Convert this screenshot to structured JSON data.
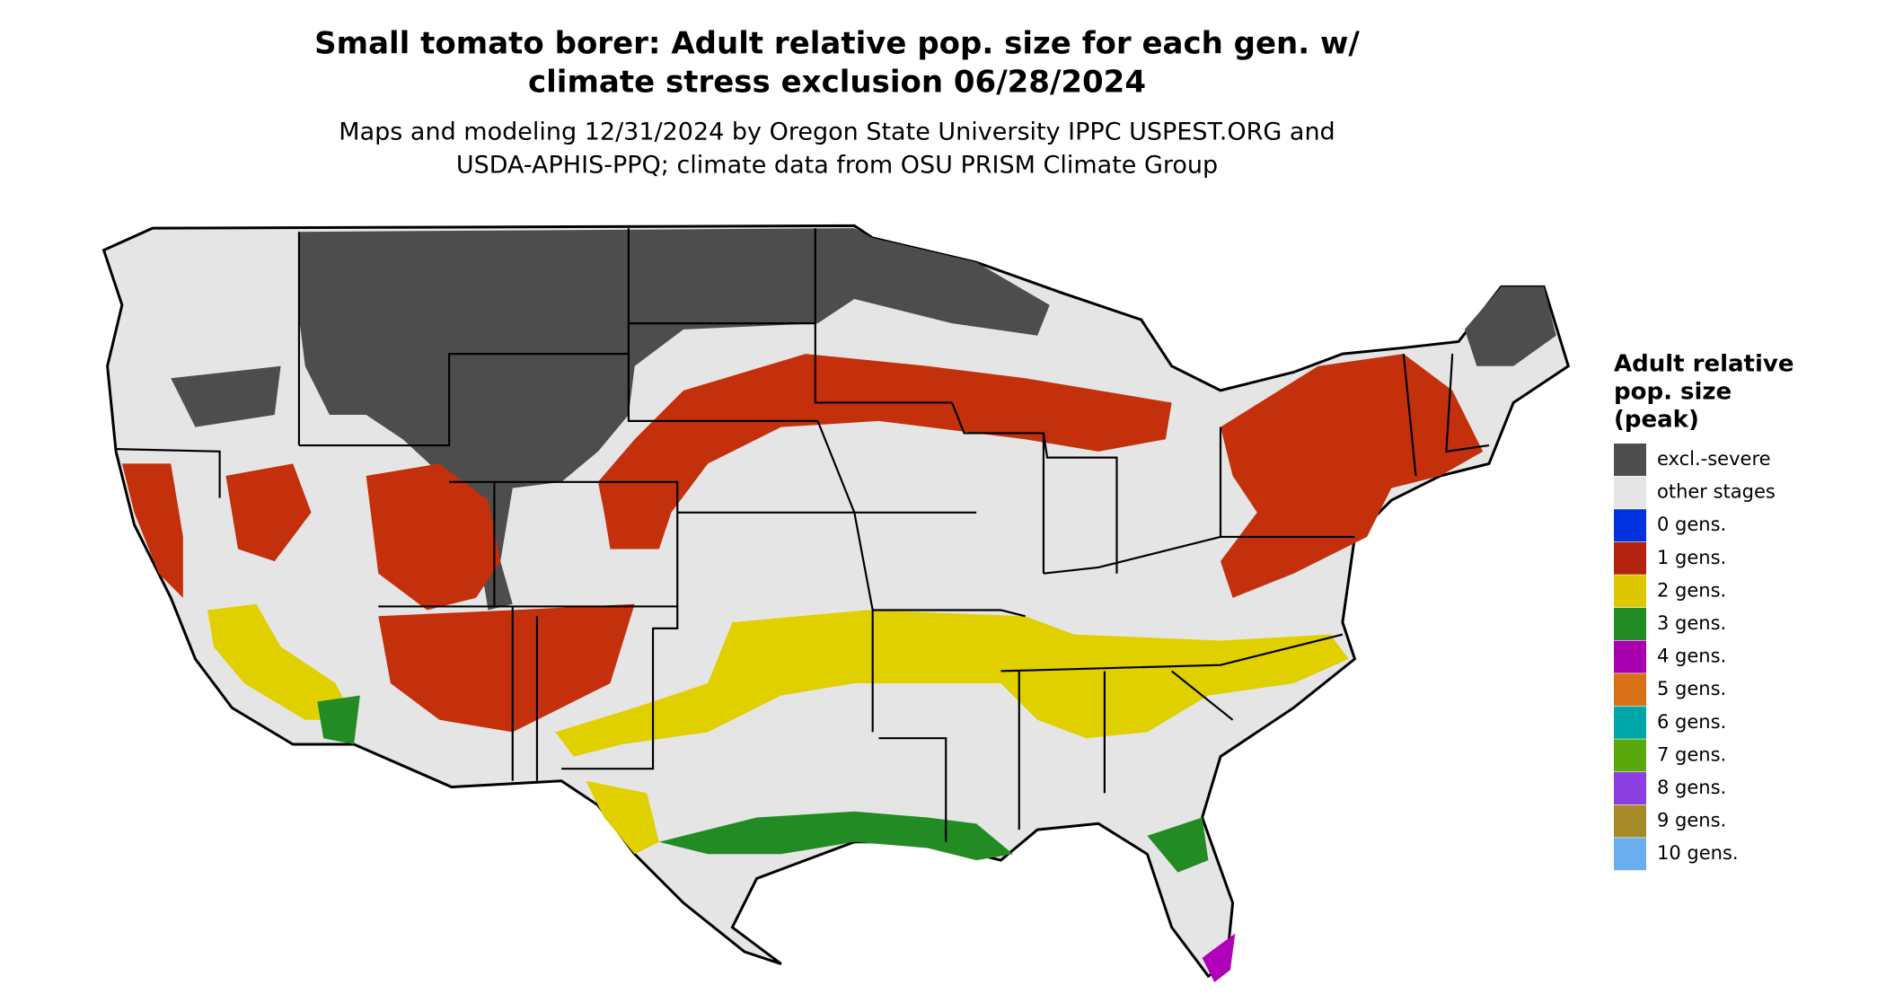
{
  "header": {
    "title_lines": [
      "Small tomato borer: Adult relative pop. size for each gen. w/",
      "climate stress exclusion 06/28/2024"
    ],
    "subtitle_lines": [
      "Maps and modeling 12/31/2024 by Oregon State University IPPC USPEST.ORG and",
      "USDA-APHIS-PPQ; climate data from OSU PRISM Climate Group"
    ]
  },
  "legend": {
    "title_lines": [
      "Adult relative",
      "pop. size",
      "(peak)"
    ],
    "items": [
      {
        "label": "excl.-severe",
        "color": "#4d4d4d"
      },
      {
        "label": "other stages",
        "color": "#e5e5e5"
      },
      {
        "label": "0 gens.",
        "color": "#0032e0"
      },
      {
        "label": "1 gens.",
        "color": "#b2220e"
      },
      {
        "label": "2 gens.",
        "color": "#dcc700"
      },
      {
        "label": "3 gens.",
        "color": "#238b23"
      },
      {
        "label": "4 gens.",
        "color": "#a800b0"
      },
      {
        "label": "5 gens.",
        "color": "#d87018"
      },
      {
        "label": "6 gens.",
        "color": "#00a7a8"
      },
      {
        "label": "7 gens.",
        "color": "#5aa80c"
      },
      {
        "label": "8 gens.",
        "color": "#8c3fe0"
      },
      {
        "label": "9 gens.",
        "color": "#a58a28"
      },
      {
        "label": "10 gens.",
        "color": "#6aaef0"
      }
    ]
  }
}
